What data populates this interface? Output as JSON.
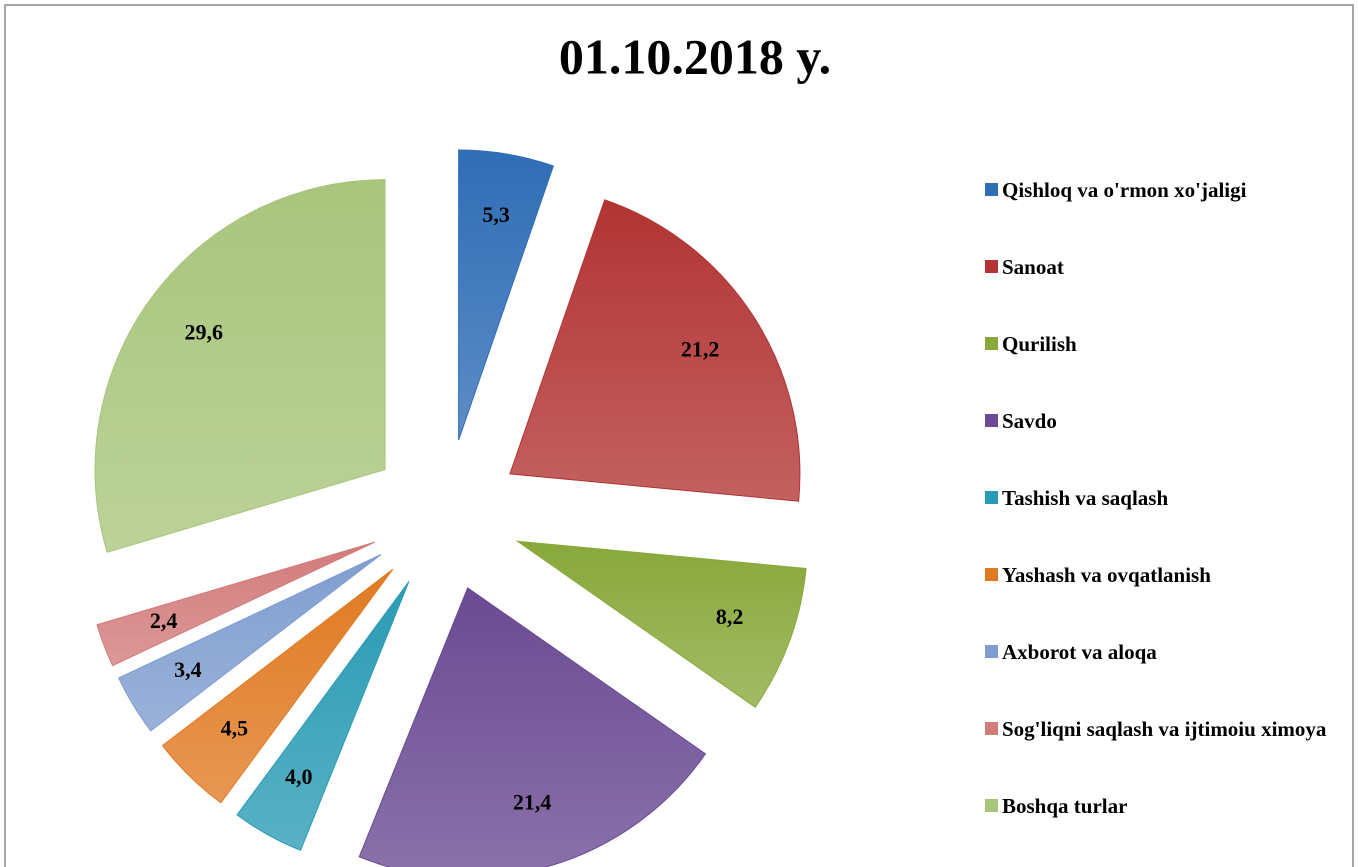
{
  "chart_data": {
    "type": "pie",
    "title": "01.10.2018 y.",
    "categories": [
      "Qishloq va o'rmon xo'jaligi",
      "Sanoat",
      "Qurilish",
      "Savdo",
      "Tashish va saqlash",
      "Yashash va ovqatlanish",
      "Axborot va aloqa",
      "Sog'liqni saqlash va ijtimoiu ximoya",
      "Boshqa turlar"
    ],
    "values": [
      5.3,
      21.2,
      8.2,
      21.4,
      4.0,
      4.5,
      3.4,
      2.4,
      29.6
    ],
    "value_labels": [
      "5,3",
      "21,2",
      "8,2",
      "21,4",
      "4,0",
      "4,5",
      "3,4",
      "2,4",
      "29,6"
    ],
    "colors": [
      "#2f6db5",
      "#b23434",
      "#88a83a",
      "#6a4a92",
      "#2a9bb4",
      "#e07a22",
      "#7f9dcf",
      "#d27b7b",
      "#a9c57c"
    ],
    "legend": "right"
  }
}
